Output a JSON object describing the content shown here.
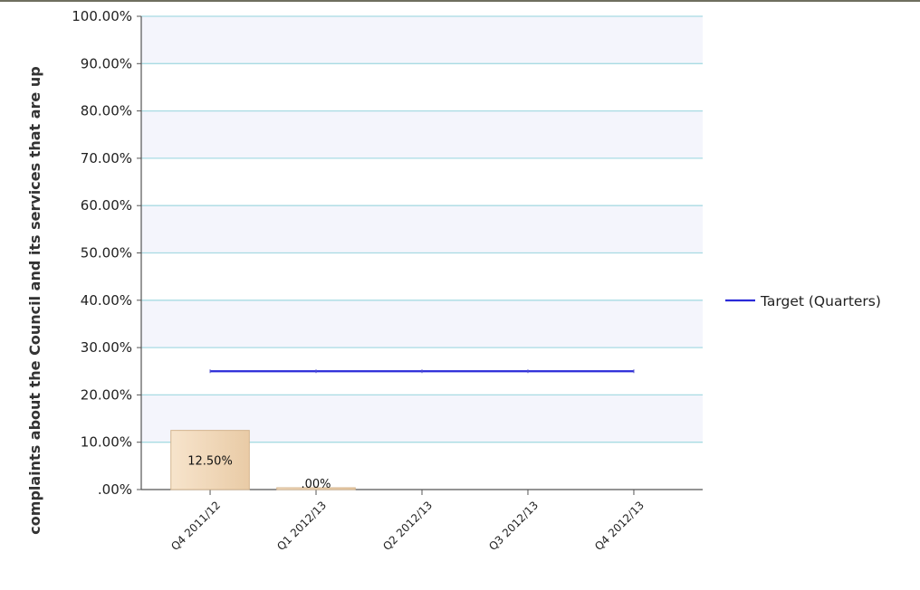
{
  "chart_data": {
    "type": "bar",
    "ylabel": "complaints about the Council and its services that are up",
    "categories": [
      "Q4 2011/12",
      "Q1 2012/13",
      "Q2 2012/13",
      "Q3 2012/13",
      "Q4 2012/13"
    ],
    "y_ticks": [
      "100.00%",
      "90.00%",
      "80.00%",
      "70.00%",
      "60.00%",
      "50.00%",
      "40.00%",
      "30.00%",
      "20.00%",
      "10.00%",
      ".00%"
    ],
    "ylim": [
      0,
      100
    ],
    "grid": true,
    "legend_position": "right",
    "bars": {
      "values": [
        12.5,
        0
      ],
      "labels": [
        "12.50%",
        ".00%"
      ],
      "color": "#f1d9bd"
    },
    "series": [
      {
        "name": "Target (Quarters)",
        "type": "line",
        "values": [
          25,
          25,
          25,
          25,
          25
        ],
        "color": "#2a2ad8"
      }
    ]
  }
}
